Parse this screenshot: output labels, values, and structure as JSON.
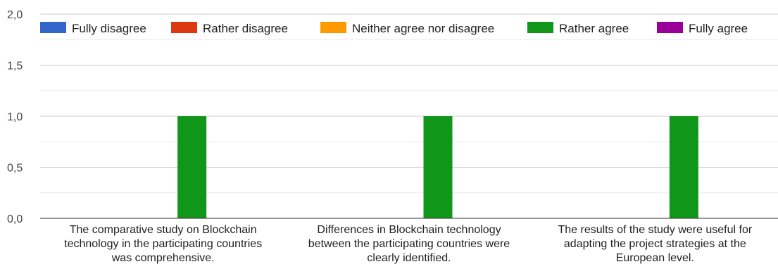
{
  "chart_data": {
    "type": "bar",
    "title": "",
    "xlabel": "",
    "ylabel": "",
    "ylim": [
      0,
      2
    ],
    "yticks": [
      "0,0",
      "0,5",
      "1,0",
      "1,5",
      "2,0"
    ],
    "grid": true,
    "legend_position": "top",
    "categories": [
      [
        "The comparative study on Blockchain",
        "technology in the participating countries",
        "was comprehensive."
      ],
      [
        "Differences in Blockchain technology",
        "between the participating countries were",
        "clearly identified."
      ],
      [
        "The results of the study were useful for",
        "adapting the project strategies at the",
        "European level."
      ]
    ],
    "series": [
      {
        "name": "Fully disagree",
        "color": "#3366cc",
        "values": [
          0,
          0,
          0
        ]
      },
      {
        "name": "Rather disagree",
        "color": "#dc3912",
        "values": [
          0,
          0,
          0
        ]
      },
      {
        "name": "Neither agree nor disagree",
        "color": "#ff9900",
        "values": [
          0,
          0,
          0
        ]
      },
      {
        "name": "Rather agree",
        "color": "#109618",
        "values": [
          1,
          1,
          1
        ]
      },
      {
        "name": "Fully agree",
        "color": "#990099",
        "values": [
          0,
          0,
          0
        ]
      }
    ]
  }
}
